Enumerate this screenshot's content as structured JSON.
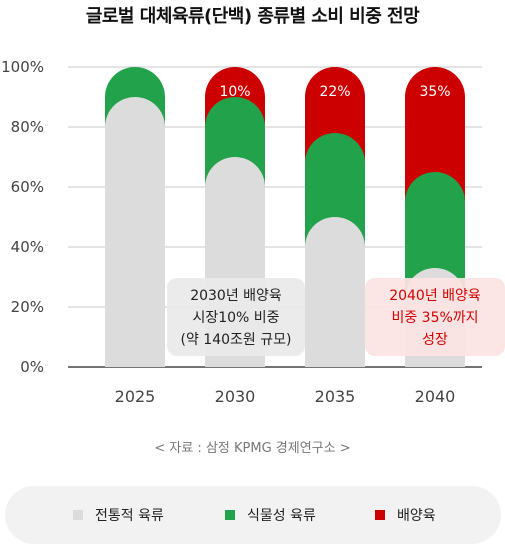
{
  "title": "글로벌 대체육류(단백) 종류별 소비 비중 전망",
  "source": "<  자료 : 삼정 KPMG 경제연구소  >",
  "colors": {
    "traditional": "#dcdcdc",
    "plant": "#22a24a",
    "cultured": "#cc0000"
  },
  "chart_data": {
    "type": "bar",
    "stacked": true,
    "categories": [
      "2025",
      "2030",
      "2035",
      "2040"
    ],
    "y_ticks": [
      "0%",
      "20%",
      "40%",
      "60%",
      "80%",
      "100%"
    ],
    "ylim": [
      0,
      100
    ],
    "series": [
      {
        "name": "전통적 육류",
        "values": [
          90,
          70,
          50,
          33
        ]
      },
      {
        "name": "식물성 육류",
        "values": [
          10,
          20,
          28,
          32
        ]
      },
      {
        "name": "배양육",
        "values": [
          0,
          10,
          22,
          35
        ]
      }
    ],
    "data_labels": [
      "",
      "10%",
      "22%",
      "35%"
    ],
    "annotations": [
      {
        "lines": [
          "2030년 배양육",
          "시장10% 비중",
          "(약 140조원 규모)"
        ]
      },
      {
        "lines": [
          "2040년 배양육",
          "비중 35%까지",
          "성장"
        ]
      }
    ]
  }
}
